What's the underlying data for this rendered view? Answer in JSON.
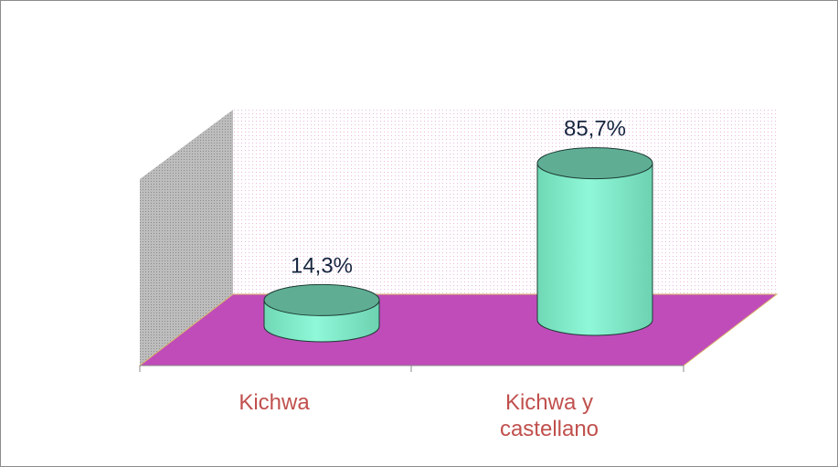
{
  "chart_data": {
    "type": "bar3d",
    "categories": [
      "Kichwa",
      "Kichwa y castellano"
    ],
    "values": [
      14.3,
      85.7
    ],
    "value_labels": [
      "14,3%",
      "85,7%"
    ],
    "color": "#7ff0cc"
  }
}
